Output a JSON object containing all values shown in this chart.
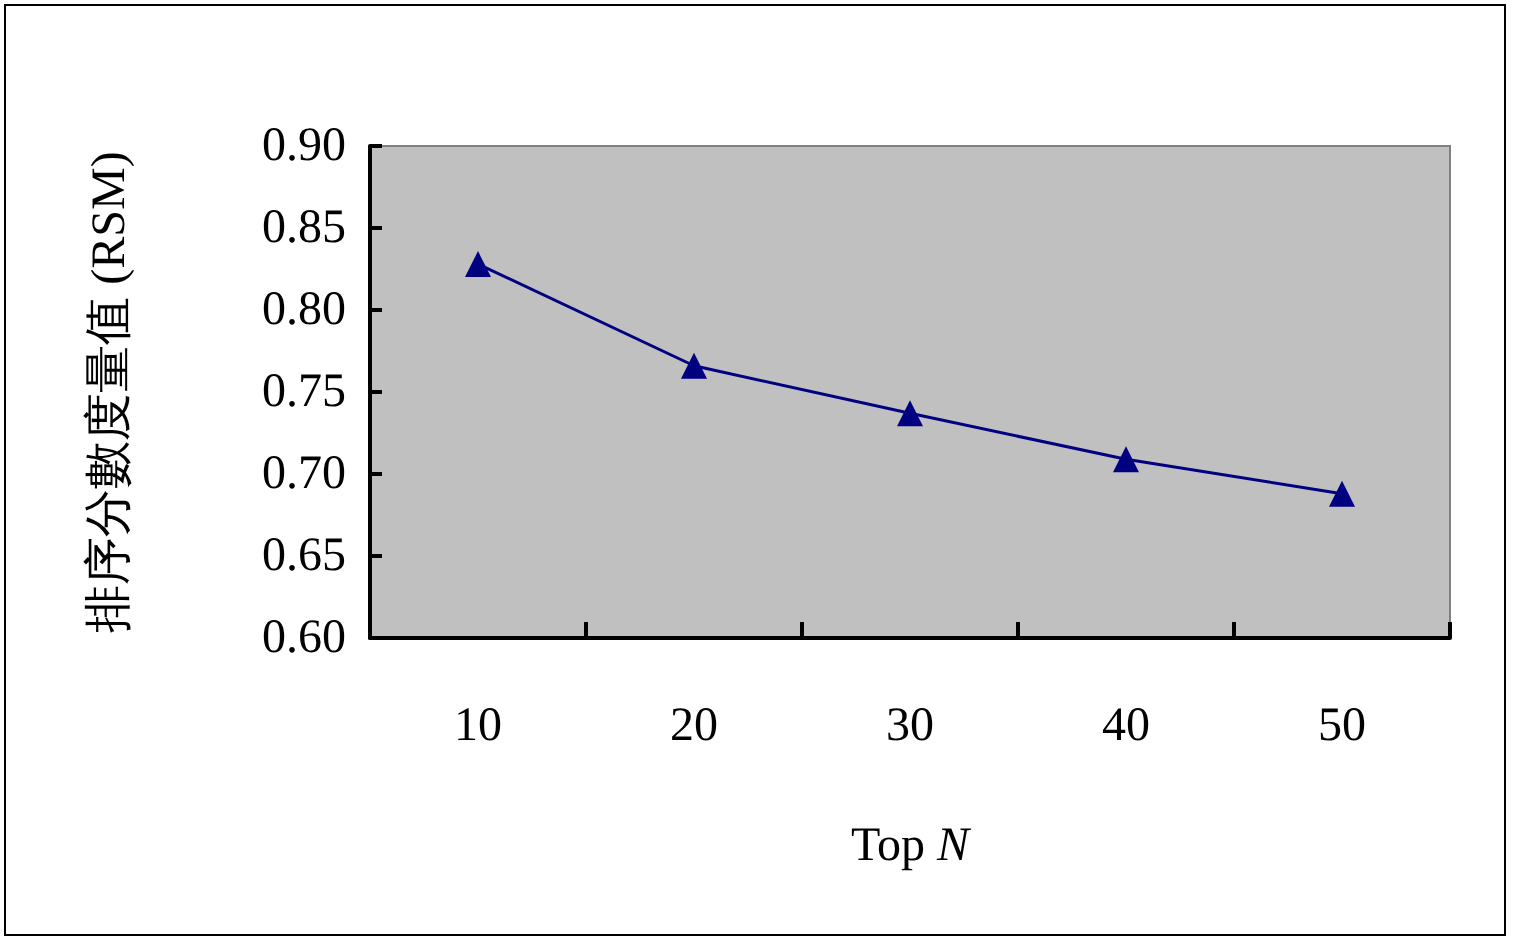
{
  "chart_data": {
    "type": "line",
    "xlabel": "Top N",
    "ylabel": "排序分數度量值 (RSM)",
    "categories": [
      "10",
      "20",
      "30",
      "40",
      "50"
    ],
    "series": [
      {
        "color": "#000080",
        "values": [
          0.828,
          0.766,
          0.737,
          0.709,
          0.688
        ]
      }
    ],
    "ylim": [
      0.6,
      0.9
    ],
    "yticks": [
      {
        "value": 0.6,
        "label": "0.60"
      },
      0.65,
      {
        "value": 0.7,
        "label": "0.70"
      },
      0.75,
      {
        "value": 0.8,
        "label": "0.80"
      },
      0.85,
      {
        "value": 0.9,
        "label": "0.90"
      }
    ],
    "grid": false,
    "marker": "triangle",
    "line_style": "solid"
  }
}
